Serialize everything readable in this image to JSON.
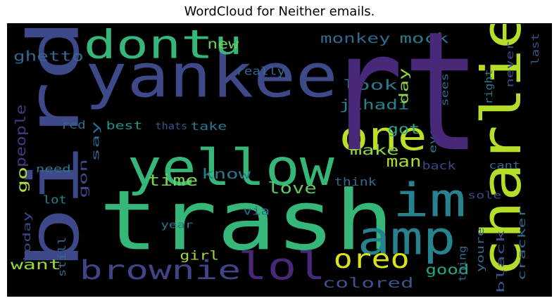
{
  "title": "WordCloud for Neither emails.",
  "cloud": {
    "background": "#000000",
    "words": [
      {
        "text": "rt",
        "color": "#482878"
      },
      {
        "text": "trash",
        "color": "#35b779"
      },
      {
        "text": "yankee",
        "color": "#3e4989"
      },
      {
        "text": "bird",
        "color": "#3e4989"
      },
      {
        "text": "charlie",
        "color": "#b5de2b"
      },
      {
        "text": "yellow",
        "color": "#35b779"
      },
      {
        "text": "dont",
        "color": "#35b779"
      },
      {
        "text": "im",
        "color": "#26828e"
      },
      {
        "text": "amp",
        "color": "#26828e"
      },
      {
        "text": "one",
        "color": "#bddf26"
      },
      {
        "text": "brownie",
        "color": "#414487"
      },
      {
        "text": "lol",
        "color": "#482878"
      },
      {
        "text": "u",
        "color": "#35b779"
      },
      {
        "text": "oreo",
        "color": "#dde318"
      },
      {
        "text": "monkey",
        "color": "#31688e"
      },
      {
        "text": "mock",
        "color": "#2a788e"
      },
      {
        "text": "ghetto",
        "color": "#31688e"
      },
      {
        "text": "new",
        "color": "#6ccd5a"
      },
      {
        "text": "jihadi",
        "color": "#26828e"
      },
      {
        "text": "look",
        "color": "#2a788e"
      },
      {
        "text": "day",
        "color": "#90d743"
      },
      {
        "text": "really",
        "color": "#31688e"
      },
      {
        "text": "people",
        "color": "#443983"
      },
      {
        "text": "red",
        "color": "#31688e"
      },
      {
        "text": "best",
        "color": "#21918c"
      },
      {
        "text": "thats",
        "color": "#3b528b"
      },
      {
        "text": "take",
        "color": "#2a788e"
      },
      {
        "text": "got",
        "color": "#22a884"
      },
      {
        "text": "man",
        "color": "#addc30"
      },
      {
        "text": "make",
        "color": "#8fd744"
      },
      {
        "text": "go",
        "color": "#a8db34"
      },
      {
        "text": "say",
        "color": "#31688e"
      },
      {
        "text": "gon",
        "color": "#3e4989"
      },
      {
        "text": "need",
        "color": "#2a788e"
      },
      {
        "text": "time",
        "color": "#7ad151"
      },
      {
        "text": "know",
        "color": "#2a788e"
      },
      {
        "text": "love",
        "color": "#5ec962"
      },
      {
        "text": "via",
        "color": "#31688e"
      },
      {
        "text": "think",
        "color": "#31688e"
      },
      {
        "text": "back",
        "color": "#414487"
      },
      {
        "text": "even",
        "color": "#2a788e"
      },
      {
        "text": "cant",
        "color": "#31688e"
      },
      {
        "text": "sole",
        "color": "#3e4989"
      },
      {
        "text": "lot",
        "color": "#26828e"
      },
      {
        "text": "year",
        "color": "#2a788e"
      },
      {
        "text": "girl",
        "color": "#a2da37"
      },
      {
        "text": "today",
        "color": "#3e4989"
      },
      {
        "text": "still",
        "color": "#31688e"
      },
      {
        "text": "want",
        "color": "#95d840"
      },
      {
        "text": "colored",
        "color": "#3b528b"
      },
      {
        "text": "good",
        "color": "#22a884"
      },
      {
        "text": "thing",
        "color": "#31688e"
      },
      {
        "text": "black",
        "color": "#3b528b"
      },
      {
        "text": "cracker",
        "color": "#31688e"
      },
      {
        "text": "youre",
        "color": "#31688e"
      },
      {
        "text": "never",
        "color": "#3e4989"
      },
      {
        "text": "last",
        "color": "#3b528b"
      },
      {
        "text": "right",
        "color": "#2a788e"
      },
      {
        "text": "sees",
        "color": "#31688e"
      },
      {
        "text": "rt",
        "color": "#482878"
      }
    ]
  }
}
